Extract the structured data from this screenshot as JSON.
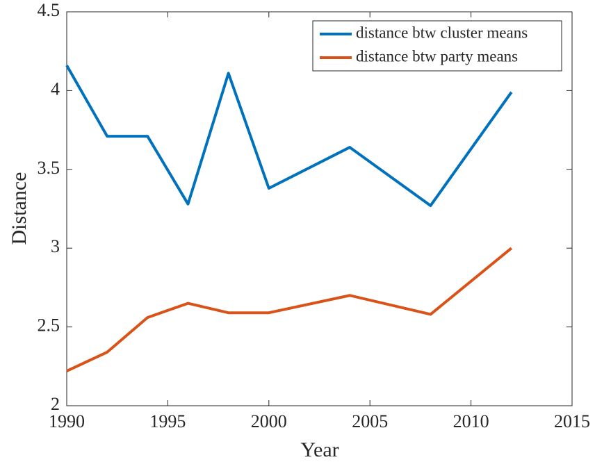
{
  "chart_data": {
    "type": "line",
    "xlabel": "Year",
    "ylabel": "Distance",
    "x": [
      1990,
      1992,
      1994,
      1996,
      1998,
      2000,
      2004,
      2008,
      2012
    ],
    "series": [
      {
        "name": "distance btw cluster means",
        "color": "#0072BD",
        "values": [
          4.16,
          3.71,
          3.71,
          3.28,
          4.11,
          3.38,
          3.64,
          3.27,
          3.99
        ]
      },
      {
        "name": "distance btw party means",
        "color": "#D95319",
        "values": [
          2.22,
          2.34,
          2.56,
          2.65,
          2.59,
          2.59,
          2.7,
          2.58,
          3.0
        ]
      }
    ],
    "xlim": [
      1990,
      2015
    ],
    "xticks": [
      1990,
      1995,
      2000,
      2005,
      2010,
      2015
    ],
    "ylim": [
      2,
      4.5
    ],
    "yticks": [
      2,
      2.5,
      3,
      3.5,
      4,
      4.5
    ],
    "legend": "upper right",
    "grid": false
  }
}
